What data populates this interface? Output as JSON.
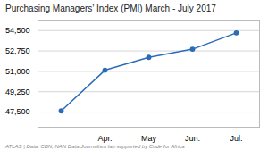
{
  "chart_data": {
    "type": "line",
    "title": "Purchasing Managers’ Index (PMI) March - July 2017",
    "caption": "ATLAS  |  Data: CBN, NAN Data Journalism lab supported by Code for Africa",
    "categories": [
      null,
      "Apr.",
      "May",
      "Jun.",
      "Jul."
    ],
    "values": [
      47600,
      51100,
      52200,
      52900,
      54300
    ],
    "color": "#2b6cb8",
    "marker": "circle",
    "ylim": [
      46200,
      55400
    ],
    "yticks": [
      {
        "value": 47500,
        "label": "47,500"
      },
      {
        "value": 49250,
        "label": "49,250"
      },
      {
        "value": 51000,
        "label": "51,000"
      },
      {
        "value": 52750,
        "label": "52,750"
      },
      {
        "value": 54500,
        "label": "54,500"
      }
    ],
    "grid": true
  }
}
